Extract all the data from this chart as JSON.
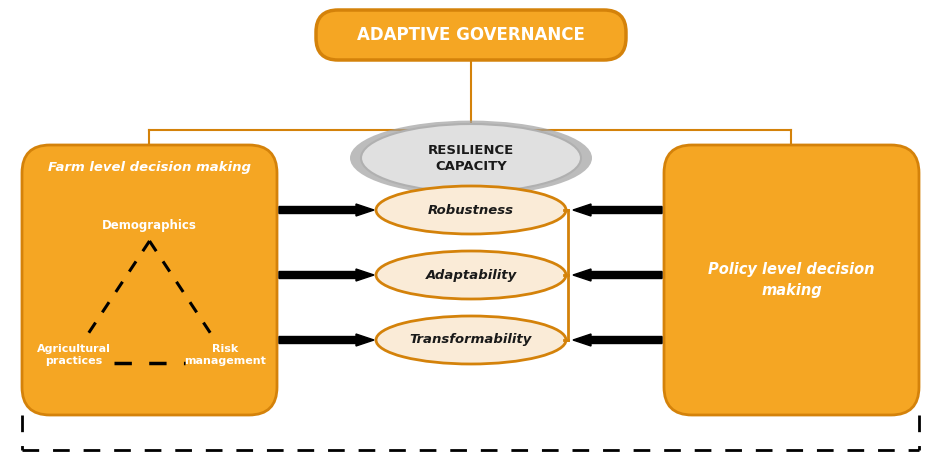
{
  "bg_color": "#ffffff",
  "orange_main": "#F5A623",
  "orange_dark": "#D4820A",
  "orange_border": "#CC7A00",
  "peach_fill": "#FAEBD7",
  "gray_light": "#E8E8E8",
  "gray_dark": "#AAAAAA",
  "text_white": "#FFFFFF",
  "text_black": "#000000",
  "text_dark": "#1A1A1A",
  "adaptive_gov_text": "ADAPTIVE GOVERNANCE",
  "resilience_text": "RESILIENCE\nCAPACITY",
  "farm_title": "Farm level decision making",
  "policy_title": "Policy level decision\nmaking",
  "node_labels": [
    "Robustness",
    "Adaptability",
    "Transformability"
  ],
  "fig_width": 9.41,
  "fig_height": 4.62
}
